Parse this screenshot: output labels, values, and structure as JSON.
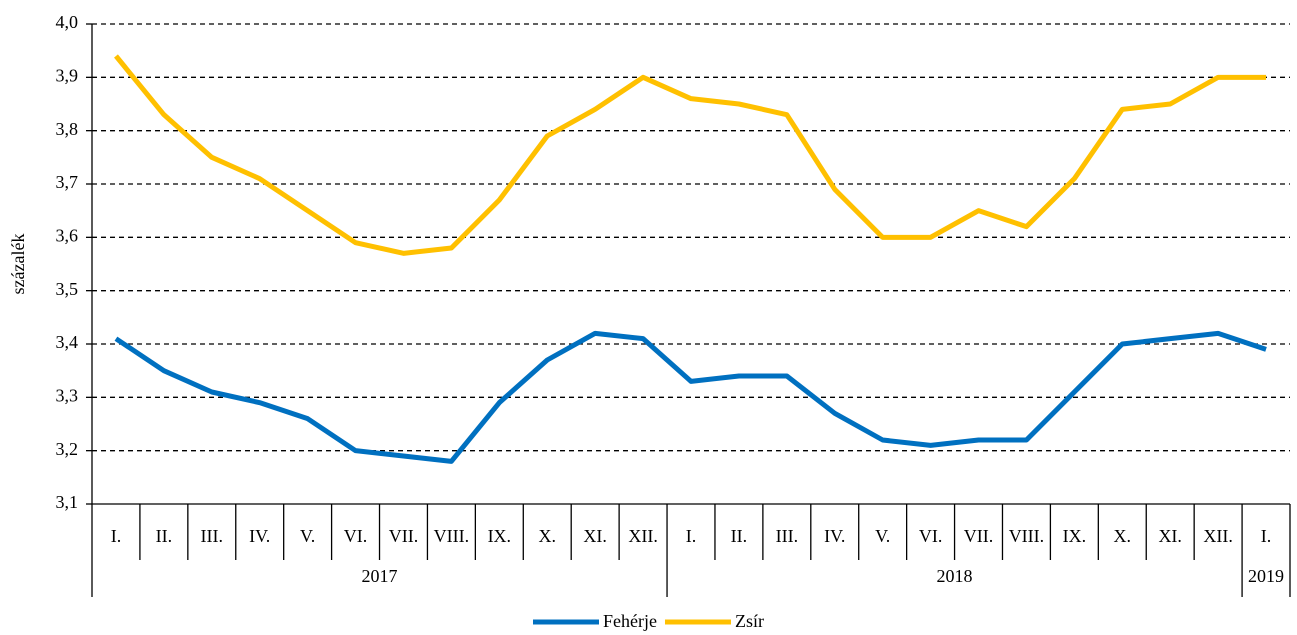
{
  "chart_data": {
    "type": "line",
    "y_label": "százalék",
    "groups": [
      {
        "label": "2017",
        "categories": [
          "I.",
          "II.",
          "III.",
          "IV.",
          "V.",
          "VI.",
          "VII.",
          "VIII.",
          "IX.",
          "X.",
          "XI.",
          "XII."
        ]
      },
      {
        "label": "2018",
        "categories": [
          "I.",
          "II.",
          "III.",
          "IV.",
          "V.",
          "VI.",
          "VII.",
          "VIII.",
          "IX.",
          "X.",
          "XI.",
          "XII."
        ]
      },
      {
        "label": "2019",
        "categories": [
          "I."
        ]
      }
    ],
    "series": [
      {
        "name": "Fehérje",
        "color": "#0070c0",
        "values": [
          3.41,
          3.35,
          3.31,
          3.29,
          3.26,
          3.2,
          3.19,
          3.18,
          3.29,
          3.37,
          3.42,
          3.41,
          3.33,
          3.34,
          3.34,
          3.27,
          3.22,
          3.21,
          3.22,
          3.22,
          3.31,
          3.4,
          3.41,
          3.42,
          3.39
        ]
      },
      {
        "name": "Zsír",
        "color": "#ffc000",
        "values": [
          3.94,
          3.83,
          3.75,
          3.71,
          3.65,
          3.59,
          3.57,
          3.58,
          3.67,
          3.79,
          3.84,
          3.9,
          3.86,
          3.85,
          3.83,
          3.69,
          3.6,
          3.6,
          3.65,
          3.62,
          3.71,
          3.84,
          3.85,
          3.9,
          3.9
        ]
      }
    ],
    "ylim": [
      3.1,
      4.0
    ],
    "yticks": [
      {
        "value": 3.1,
        "label": "3,1"
      },
      {
        "value": 3.2,
        "label": "3,2"
      },
      {
        "value": 3.3,
        "label": "3,3"
      },
      {
        "value": 3.4,
        "label": "3,4"
      },
      {
        "value": 3.5,
        "label": "3,5"
      },
      {
        "value": 3.6,
        "label": "3,6"
      },
      {
        "value": 3.7,
        "label": "3,7"
      },
      {
        "value": 3.8,
        "label": "3,8"
      },
      {
        "value": 3.9,
        "label": "3,9"
      },
      {
        "value": 4.0,
        "label": "4,0"
      }
    ],
    "grid": true,
    "legend": "bottom"
  }
}
